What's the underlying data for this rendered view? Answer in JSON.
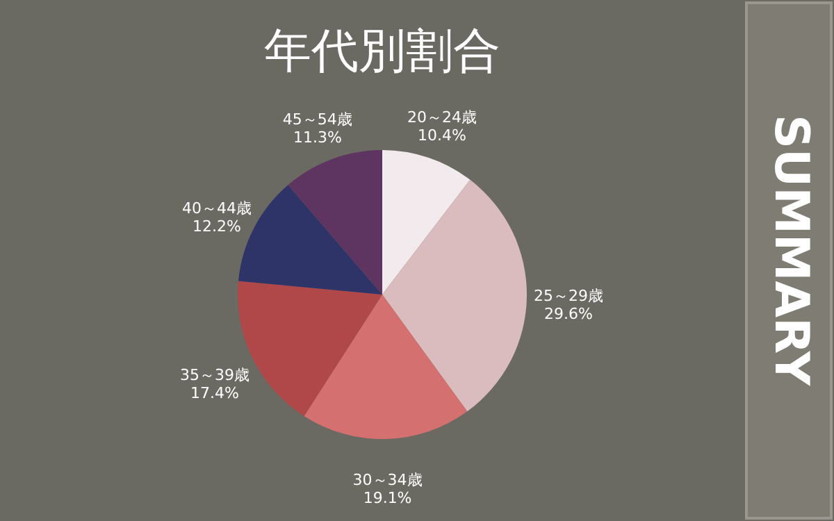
{
  "chart_data": {
    "type": "pie",
    "title": "年代別割合",
    "categories": [
      "20～24歳",
      "25～29歳",
      "30～34歳",
      "35～39歳",
      "40～44歳",
      "45～54歳"
    ],
    "values": [
      10.4,
      29.6,
      19.1,
      17.4,
      12.2,
      11.3
    ],
    "value_labels": [
      "10.4%",
      "29.6%",
      "19.1%",
      "17.4%",
      "12.2%",
      "11.3%"
    ],
    "colors": [
      "#f3eaee",
      "#dbbcbe",
      "#d4706f",
      "#b0484a",
      "#2f3468",
      "#5e3560"
    ],
    "annotations": [
      "SUMMARY"
    ]
  }
}
